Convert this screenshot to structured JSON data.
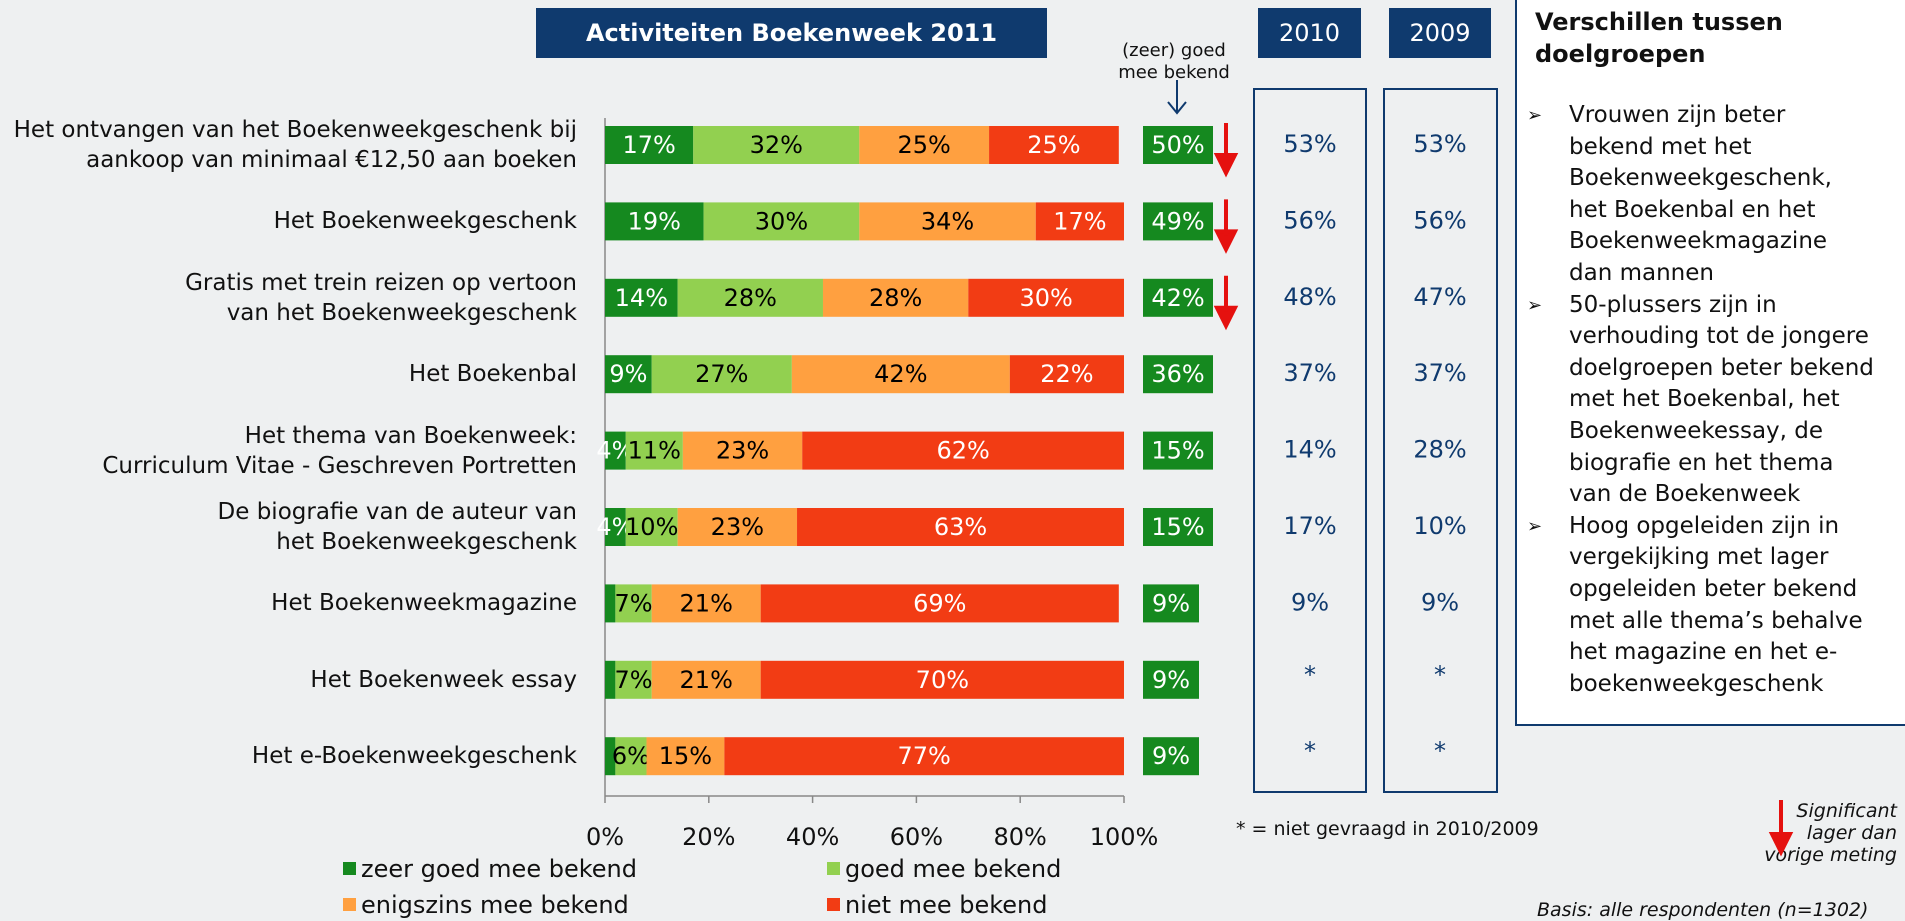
{
  "chart_data": {
    "type": "bar",
    "orientation": "horizontal",
    "stacked": true,
    "title": "Activiteiten Boekenweek 2011",
    "categories": [
      "Het ontvangen van het Boekenweekgeschenk bij\naankoop van minimaal €12,50 aan boeken",
      "Het Boekenweekgeschenk",
      "Gratis met trein reizen op vertoon\nvan het Boekenweekgeschenk",
      "Het Boekenbal",
      "Het thema van Boekenweek:\nCurriculum Vitae - Geschreven Portretten",
      "De biografie van de auteur van\nhet Boekenweekgeschenk",
      "Het Boekenweekmagazine",
      "Het Boekenweek essay",
      "Het e-Boekenweekgeschenk"
    ],
    "series": [
      {
        "name": "zeer goed mee bekend",
        "color": "#15891f",
        "label_color": "#ffffff",
        "values": [
          17,
          19,
          14,
          9,
          4,
          4,
          2,
          2,
          2
        ],
        "value_labels": [
          "17%",
          "19%",
          "14%",
          "9%",
          "4%",
          "4%",
          null,
          null,
          null
        ]
      },
      {
        "name": "goed mee bekend",
        "color": "#92d050",
        "label_color": "#000000",
        "values": [
          32,
          30,
          28,
          27,
          11,
          10,
          7,
          7,
          6
        ],
        "value_labels": [
          "32%",
          "30%",
          "28%",
          "27%",
          "11%",
          "10%",
          "7%",
          "7%",
          "6%"
        ]
      },
      {
        "name": "enigszins mee bekend",
        "color": "#ffa040",
        "label_color": "#000000",
        "values": [
          25,
          34,
          28,
          42,
          23,
          23,
          21,
          21,
          15
        ],
        "value_labels": [
          "25%",
          "34%",
          "28%",
          "42%",
          "23%",
          "23%",
          "21%",
          "21%",
          "15%"
        ]
      },
      {
        "name": "niet mee bekend",
        "color": "#f23c14",
        "label_color": "#ffffff",
        "values": [
          25,
          17,
          30,
          22,
          62,
          63,
          69,
          70,
          77
        ],
        "value_labels": [
          "25%",
          "17%",
          "30%",
          "22%",
          "62%",
          "63%",
          "69%",
          "70%",
          "77%"
        ]
      }
    ],
    "xlim": [
      0,
      100
    ],
    "xticks": [
      {
        "value": 0,
        "label": "0%"
      },
      {
        "value": 20,
        "label": "20%"
      },
      {
        "value": 40,
        "label": "40%"
      },
      {
        "value": 60,
        "label": "60%"
      },
      {
        "value": 80,
        "label": "80%"
      },
      {
        "value": 100,
        "label": "100%"
      }
    ],
    "known": {
      "header": "(zeer) goed\nmee bekend",
      "color": "#15891f",
      "values": [
        50,
        49,
        42,
        36,
        15,
        15,
        9,
        9,
        9
      ],
      "value_labels": [
        "50%",
        "49%",
        "42%",
        "36%",
        "15%",
        "15%",
        "9%",
        "9%",
        "9%"
      ],
      "significant_lower": [
        true,
        true,
        true,
        false,
        false,
        false,
        false,
        false,
        false
      ]
    },
    "years": [
      {
        "name": "2010",
        "values": [
          53,
          56,
          48,
          37,
          14,
          17,
          9,
          null,
          null
        ],
        "value_labels": [
          "53%",
          "56%",
          "48%",
          "37%",
          "14%",
          "17%",
          "9%",
          "*",
          "*"
        ]
      },
      {
        "name": "2009",
        "values": [
          53,
          56,
          47,
          37,
          28,
          10,
          9,
          null,
          null
        ],
        "value_labels": [
          "53%",
          "56%",
          "47%",
          "37%",
          "28%",
          "10%",
          "9%",
          "*",
          "*"
        ]
      }
    ],
    "footnote": "* = niet gevraagd in 2010/2009",
    "significance_legend": "Significant\nlager dan\nvorige meting",
    "basis": "Basis: alle respondenten (n=1302)"
  },
  "sidebar": {
    "title": "Verschillen tussen\ndoelgroepen",
    "bullets": [
      " Vrouwen zijn beter\nbekend met het\nBoekenweekgeschenk,\nhet Boekenbal en het\nBoekenweekmagazine\ndan mannen",
      " 50-plussers zijn in\nverhouding tot de jongere\ndoelgroepen beter bekend\nmet het Boekenbal, het\nBoekenweekessay, de\nbiografie en het thema\nvan de Boekenweek",
      "Hoog opgeleiden zijn in\nvergekijking met lager\nopgeleiden beter bekend\nmet alle thema’s behalve\nhet magazine en het e-\nboekenweekgeschenk"
    ]
  }
}
